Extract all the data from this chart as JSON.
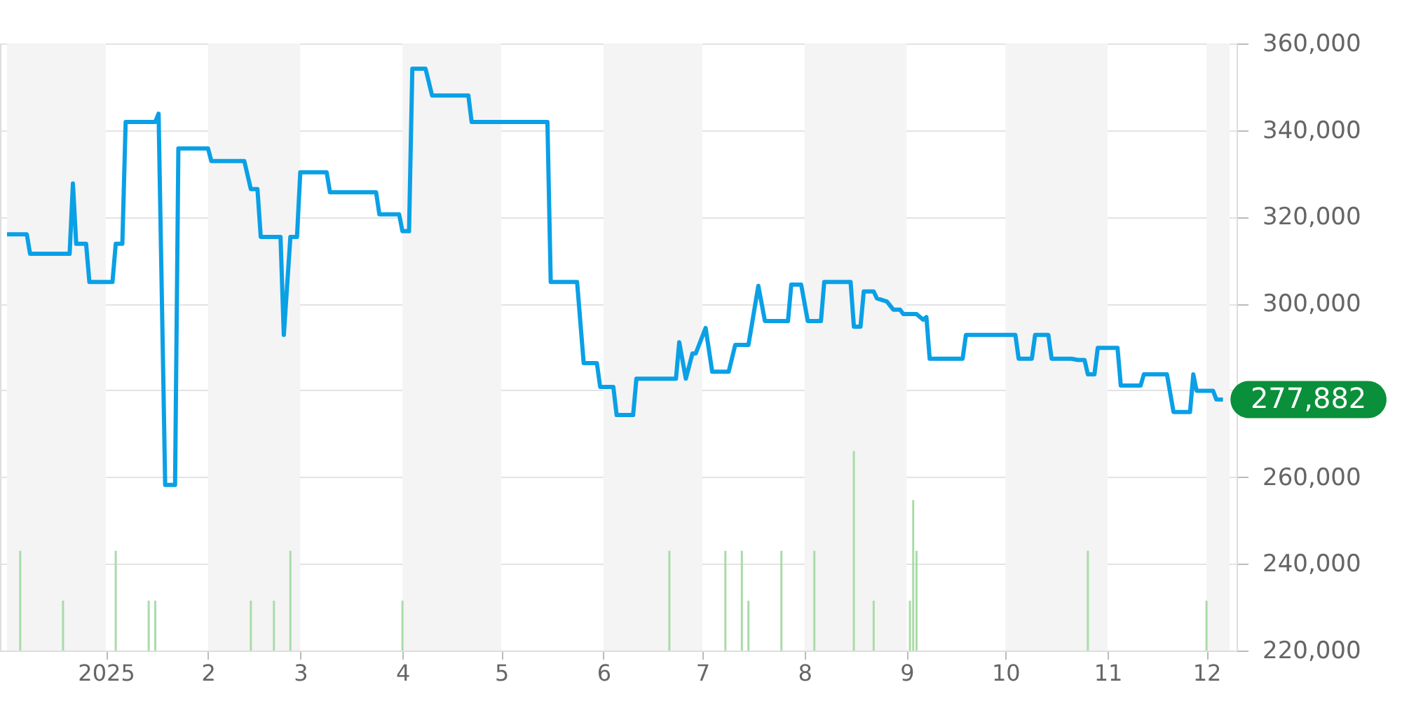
{
  "chart_data": {
    "type": "line",
    "xlim": [
      "2024-12-02",
      "2025-12-08"
    ],
    "ylim": [
      220000,
      360000
    ],
    "yticks": [
      {
        "value": 220000,
        "label": "220,000"
      },
      {
        "value": 240000,
        "label": "240,000"
      },
      {
        "value": 260000,
        "label": "260,000"
      },
      {
        "value": 280000,
        "label": null
      },
      {
        "value": 300000,
        "label": "300,000"
      },
      {
        "value": 320000,
        "label": "320,000"
      },
      {
        "value": 340000,
        "label": "340,000"
      },
      {
        "value": 360000,
        "label": "360,000"
      }
    ],
    "xticks": [
      {
        "value": "2025-01-01",
        "label": "2025"
      },
      {
        "value": "2025-02-01",
        "label": "2"
      },
      {
        "value": "2025-03-01",
        "label": "3"
      },
      {
        "value": "2025-04-01",
        "label": "4"
      },
      {
        "value": "2025-05-01",
        "label": "5"
      },
      {
        "value": "2025-06-01",
        "label": "6"
      },
      {
        "value": "2025-07-01",
        "label": "7"
      },
      {
        "value": "2025-08-01",
        "label": "8"
      },
      {
        "value": "2025-09-01",
        "label": "9"
      },
      {
        "value": "2025-10-01",
        "label": "10"
      },
      {
        "value": "2025-11-01",
        "label": "11"
      },
      {
        "value": "2025-12-01",
        "label": "12"
      }
    ],
    "grid": "y",
    "marker": "none",
    "line_style": "solid",
    "bands": [
      {
        "axis": "x",
        "from": "2024-12-02",
        "to": "2025-01-01",
        "color": "#f4f4f4"
      },
      {
        "axis": "x",
        "from": "2025-02-01",
        "to": "2025-03-01",
        "color": "#f4f4f4"
      },
      {
        "axis": "x",
        "from": "2025-04-01",
        "to": "2025-05-01",
        "color": "#f4f4f4"
      },
      {
        "axis": "x",
        "from": "2025-06-01",
        "to": "2025-07-01",
        "color": "#f4f4f4"
      },
      {
        "axis": "x",
        "from": "2025-08-01",
        "to": "2025-09-01",
        "color": "#f4f4f4"
      },
      {
        "axis": "x",
        "from": "2025-10-01",
        "to": "2025-11-01",
        "color": "#f4f4f4"
      },
      {
        "axis": "x",
        "from": "2025-12-01",
        "to": "2025-12-08",
        "color": "#f4f4f4"
      }
    ],
    "annotations": [
      {
        "text": "277,882",
        "x": "2025-12-06",
        "y": 277882
      }
    ],
    "series": [
      {
        "type": "bar",
        "color": "#a8dca8",
        "x": [
          "2024-12-06",
          "2024-12-19",
          "2025-01-04",
          "2025-01-14",
          "2025-01-16",
          "2025-02-14",
          "2025-02-21",
          "2025-02-26",
          "2025-04-01",
          "2025-06-21",
          "2025-07-08",
          "2025-07-13",
          "2025-07-15",
          "2025-07-25",
          "2025-08-04",
          "2025-08-16",
          "2025-08-22",
          "2025-09-02",
          "2025-09-03",
          "2025-09-04",
          "2025-10-26",
          "2025-12-01"
        ],
        "values": [
          243000,
          231500,
          243000,
          231500,
          231500,
          231500,
          231500,
          243000,
          231500,
          243000,
          243000,
          243000,
          231500,
          243000,
          243000,
          266000,
          231500,
          231500,
          254700,
          243000,
          243000,
          231500
        ]
      },
      {
        "color": "#0aa0e6",
        "x": [
          "2024-12-02",
          "2024-12-08",
          "2024-12-09",
          "2024-12-21",
          "2024-12-22",
          "2024-12-23",
          "2024-12-26",
          "2024-12-27",
          "2025-01-03",
          "2025-01-04",
          "2025-01-06",
          "2025-01-07",
          "2025-01-16",
          "2025-01-17",
          "2025-01-19",
          "2025-01-22",
          "2025-01-23",
          "2025-02-01",
          "2025-02-02",
          "2025-02-12",
          "2025-02-14",
          "2025-02-16",
          "2025-02-17",
          "2025-02-23",
          "2025-02-24",
          "2025-02-26",
          "2025-02-28",
          "2025-03-01",
          "2025-03-09",
          "2025-03-10",
          "2025-03-24",
          "2025-03-25",
          "2025-03-31",
          "2025-04-01",
          "2025-04-03",
          "2025-04-04",
          "2025-04-08",
          "2025-04-10",
          "2025-04-21",
          "2025-04-22",
          "2025-05-15",
          "2025-05-16",
          "2025-05-24",
          "2025-05-26",
          "2025-05-30",
          "2025-05-31",
          "2025-06-04",
          "2025-06-05",
          "2025-06-10",
          "2025-06-11",
          "2025-06-23",
          "2025-06-24",
          "2025-06-26",
          "2025-06-28",
          "2025-06-29",
          "2025-07-02",
          "2025-07-04",
          "2025-07-09",
          "2025-07-11",
          "2025-07-15",
          "2025-07-18",
          "2025-07-20",
          "2025-07-27",
          "2025-07-28",
          "2025-07-31",
          "2025-08-02",
          "2025-08-06",
          "2025-08-07",
          "2025-08-15",
          "2025-08-16",
          "2025-08-18",
          "2025-08-19",
          "2025-08-22",
          "2025-08-23",
          "2025-08-26",
          "2025-08-28",
          "2025-08-30",
          "2025-08-31",
          "2025-09-04",
          "2025-09-06",
          "2025-09-07",
          "2025-09-08",
          "2025-09-18",
          "2025-09-19",
          "2025-10-04",
          "2025-10-05",
          "2025-10-09",
          "2025-10-10",
          "2025-10-14",
          "2025-10-15",
          "2025-10-21",
          "2025-10-23",
          "2025-10-25",
          "2025-10-26",
          "2025-10-28",
          "2025-10-29",
          "2025-11-04",
          "2025-11-05",
          "2025-11-11",
          "2025-11-12",
          "2025-11-19",
          "2025-11-21",
          "2025-11-26",
          "2025-11-27",
          "2025-11-28",
          "2025-12-03",
          "2025-12-04",
          "2025-12-06"
        ],
        "values": [
          316000,
          316000,
          311500,
          311500,
          327700,
          313800,
          313800,
          305000,
          305000,
          313800,
          313800,
          341900,
          341900,
          343800,
          258200,
          258200,
          335800,
          335800,
          332900,
          332900,
          326400,
          326400,
          315400,
          315400,
          292800,
          315400,
          315400,
          330300,
          330300,
          325700,
          325700,
          320600,
          320600,
          316700,
          316700,
          354200,
          354200,
          348000,
          348000,
          341900,
          341900,
          305000,
          305000,
          286300,
          286300,
          280800,
          280800,
          274300,
          274300,
          282700,
          282700,
          291100,
          282700,
          288500,
          288500,
          294400,
          284300,
          284300,
          290500,
          290500,
          304100,
          296000,
          296000,
          304400,
          304400,
          296000,
          296000,
          305000,
          305000,
          294700,
          294700,
          302800,
          302800,
          301200,
          300500,
          298600,
          298600,
          297600,
          297600,
          296300,
          296900,
          287300,
          287300,
          292800,
          292800,
          287300,
          287300,
          292800,
          292800,
          287300,
          287300,
          287000,
          287000,
          283700,
          283700,
          289800,
          289800,
          281100,
          281100,
          283700,
          283700,
          275000,
          275000,
          283700,
          279900,
          279900,
          277900,
          277882
        ]
      }
    ]
  }
}
